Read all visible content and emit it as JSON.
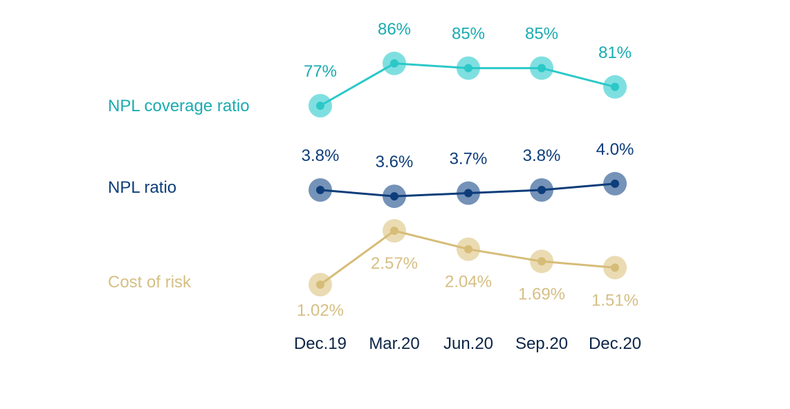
{
  "chart_data": {
    "type": "line",
    "categories": [
      "Dec.19",
      "Mar.20",
      "Jun.20",
      "Sep.20",
      "Dec.20"
    ],
    "series": [
      {
        "name": "NPL coverage ratio",
        "key": "coverage",
        "values": [
          77,
          86,
          85,
          85,
          81
        ],
        "labels": [
          "77%",
          "86%",
          "85%",
          "85%",
          "81%"
        ],
        "color": "#2cc8c8",
        "halo_color": "#7fdfe0",
        "label_color": "#1aabb0"
      },
      {
        "name": "NPL ratio",
        "key": "npl",
        "values": [
          3.8,
          3.6,
          3.7,
          3.8,
          4.0
        ],
        "labels": [
          "3.8%",
          "3.6%",
          "3.7%",
          "3.8%",
          "4.0%"
        ],
        "color": "#0d3d7a",
        "halo_color": "#7592b8",
        "label_color": "#0d3d7a"
      },
      {
        "name": "Cost of risk",
        "key": "cor",
        "values": [
          1.02,
          2.57,
          2.04,
          1.69,
          1.51
        ],
        "labels": [
          "1.02%",
          "2.57%",
          "2.04%",
          "1.69%",
          "1.51%"
        ],
        "color": "#d6bc78",
        "halo_color": "#eadbb2",
        "label_color": "#d6bf84"
      }
    ],
    "grid": false,
    "legend": "left"
  }
}
